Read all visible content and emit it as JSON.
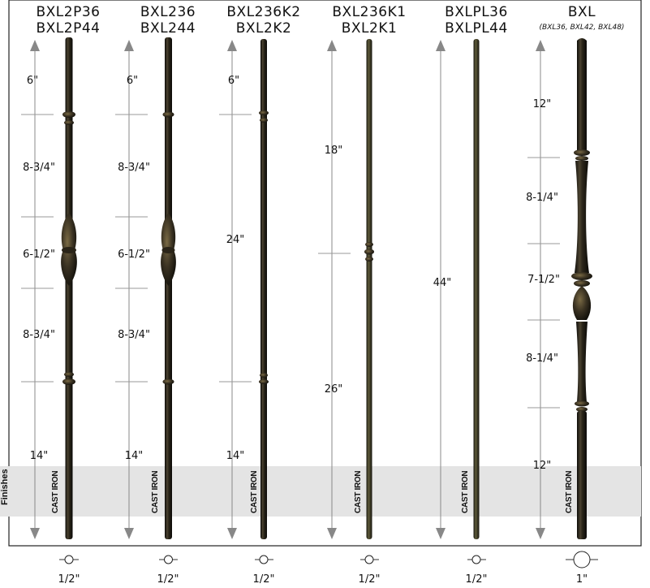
{
  "side_label": "Finishes",
  "band_label": "CAST IRON",
  "columns": [
    {
      "titles": [
        "BXL2P36",
        "BXL2P44"
      ],
      "subtitle": "",
      "diameter": "1/2\"",
      "dims": [
        "6\"",
        "8-3/4\"",
        "6-1/2\"",
        "8-3/4\"",
        "14\""
      ]
    },
    {
      "titles": [
        "BXL236",
        "BXL244"
      ],
      "subtitle": "",
      "diameter": "1/2\"",
      "dims": [
        "6\"",
        "8-3/4\"",
        "6-1/2\"",
        "8-3/4\"",
        "14\""
      ]
    },
    {
      "titles": [
        "BXL236K2",
        "BXL2K2"
      ],
      "subtitle": "",
      "diameter": "1/2\"",
      "dims": [
        "6\"",
        "24\"",
        "14\""
      ]
    },
    {
      "titles": [
        "BXL236K1",
        "BXL2K1"
      ],
      "subtitle": "",
      "diameter": "1/2\"",
      "dims": [
        "18\"",
        "26\""
      ]
    },
    {
      "titles": [
        "BXLPL36",
        "BXLPL44"
      ],
      "subtitle": "",
      "diameter": "1/2\"",
      "dims": [
        "44\""
      ]
    },
    {
      "titles": [
        "BXL"
      ],
      "subtitle": "(BXL36, BXL42, BXL48)",
      "diameter": "1\"",
      "dims": [
        "12\"",
        "8-1/4\"",
        "7-1/2\"",
        "8-1/4\"",
        "12\""
      ]
    }
  ],
  "colors": {
    "iron_dark": "#1c1a14",
    "iron_mid": "#3a3424",
    "iron_light": "#6a5e3e",
    "band": "#e4e4e4",
    "line": "#888888"
  }
}
